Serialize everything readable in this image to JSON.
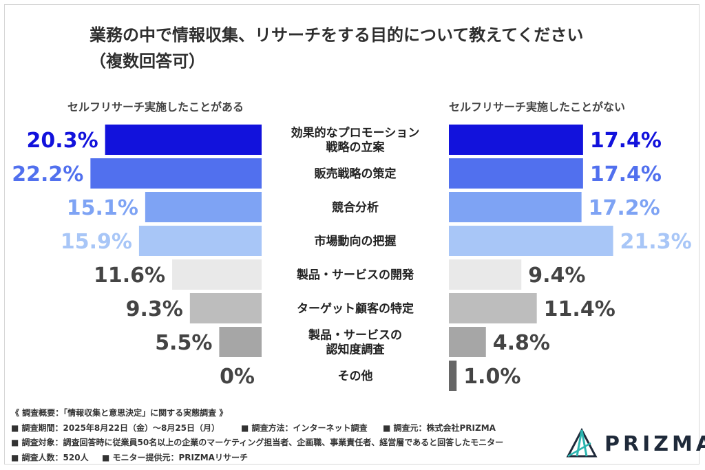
{
  "title": "業務の中で情報収集、リサーチをする目的について教えてください",
  "subtitle": "（複数回答可）",
  "chart_data": {
    "type": "bar",
    "orientation": "horizontal-butterfly",
    "title": "業務の中で情報収集、リサーチをする目的について教えてください（複数回答可）",
    "unit": "%",
    "categories": [
      "効果的なプロモーション\n戦略の立案",
      "販売戦略の策定",
      "競合分析",
      "市場動向の把握",
      "製品・サービスの開発",
      "ターゲット顧客の特定",
      "製品・サービスの\n認知度調査",
      "その他"
    ],
    "series": [
      {
        "name": "セルフリサーチ実施したことがある",
        "values": [
          20.3,
          22.2,
          15.1,
          15.9,
          11.6,
          9.3,
          5.5,
          0
        ],
        "labels": [
          "20.3%",
          "22.2%",
          "15.1%",
          "15.9%",
          "11.6%",
          "9.3%",
          "5.5%",
          "0%"
        ]
      },
      {
        "name": "セルフリサーチ実施したことがない",
        "values": [
          17.4,
          17.4,
          17.2,
          21.3,
          9.4,
          11.4,
          4.8,
          1.0
        ],
        "labels": [
          "17.4%",
          "17.4%",
          "17.2%",
          "21.3%",
          "9.4%",
          "11.4%",
          "4.8%",
          "1.0%"
        ]
      }
    ],
    "bar_colors": [
      "#1212dc",
      "#5170ee",
      "#7ea3f4",
      "#a8c6f7",
      "#e9e9e9",
      "#bdbdbd",
      "#a6a6a6",
      "#666666"
    ],
    "label_colors": [
      "#1212dc",
      "#5170ee",
      "#7ea3f4",
      "#a8c6f7",
      "#444444",
      "#444444",
      "#444444",
      "#444444"
    ]
  },
  "footnotes": {
    "overview": "《 調査概要：「情報収集と意思決定」に関する実態調査 》",
    "period": "■ 調査期間：2025年8月22日（金）〜8月25日（月）",
    "method": "■ 調査方法：インターネット調査",
    "source": "■ 調査元：株式会社PRIZMA",
    "target": "■ 調査対象：調査回答時に従業員50名以上の企業のマーケティング担当者、企画職、事業責任者、経営層であると回答したモニター",
    "count": "■ 調査人数：520人",
    "provider": "■ モニター提供元：PRIZMAリサーチ"
  },
  "logo": {
    "name": "PRIZMA",
    "color": "#1f2a3a",
    "accent": "#2bb5b0"
  }
}
